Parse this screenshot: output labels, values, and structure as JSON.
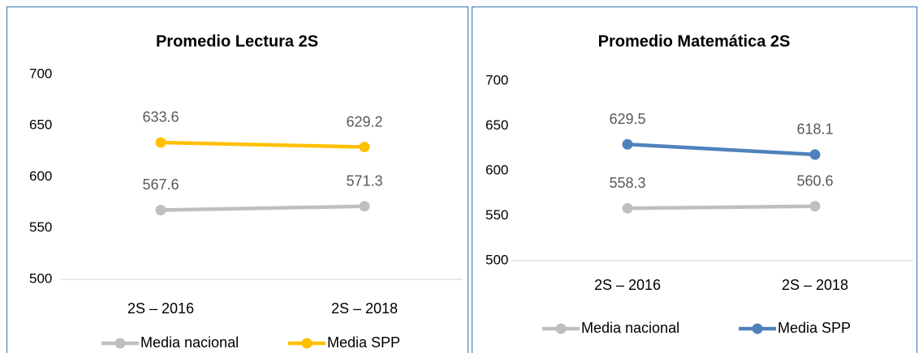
{
  "chart_data": [
    {
      "type": "line",
      "title": "Promedio Lectura 2S",
      "categories": [
        "2S – 2016",
        "2S – 2018"
      ],
      "series": [
        {
          "name": "Media nacional",
          "color": "#bfbfbf",
          "values": [
            567.6,
            571.3
          ]
        },
        {
          "name": "Media SPP",
          "color": "#ffc000",
          "values": [
            633.6,
            629.2
          ]
        }
      ],
      "ylim": [
        500,
        700
      ],
      "yticks": [
        500,
        550,
        600,
        650,
        700
      ],
      "grid": false,
      "legend": "bottom"
    },
    {
      "type": "line",
      "title": "Promedio Matemática 2S",
      "categories": [
        "2S – 2016",
        "2S – 2018"
      ],
      "series": [
        {
          "name": "Media nacional",
          "color": "#bfbfbf",
          "values": [
            558.3,
            560.6
          ]
        },
        {
          "name": "Media SPP",
          "color": "#4f81bd",
          "values": [
            629.5,
            618.1
          ]
        }
      ],
      "ylim": [
        500,
        700
      ],
      "yticks": [
        500,
        550,
        600,
        650,
        700
      ],
      "grid": false,
      "legend": "bottom"
    }
  ]
}
